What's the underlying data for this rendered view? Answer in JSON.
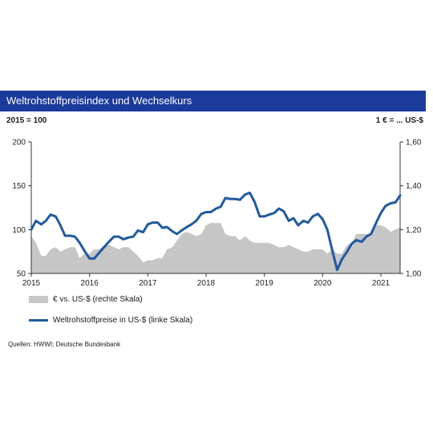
{
  "chart_data": {
    "type": "line",
    "title": "Weltrohstoffpreisindex und Wechselkurs",
    "left_axis_label": "2015 = 100",
    "right_axis_label": "1 € = ... US-$",
    "ylim": [
      50,
      200
    ],
    "y_ticks": [
      "50",
      "100",
      "150",
      "200"
    ],
    "y2lim": [
      1.0,
      1.6
    ],
    "y2_ticks": [
      "1,00",
      "1,20",
      "1,40",
      "1,60"
    ],
    "xlim": [
      2015.0,
      2021.33
    ],
    "x_ticks": [
      "2015",
      "2016",
      "2017",
      "2018",
      "2019",
      "2020",
      "2021"
    ],
    "grid": false,
    "legend_position": "bottom-left",
    "series": [
      {
        "name": "€ vs. US-$ (rechte Skala)",
        "type": "area",
        "axis": "right",
        "color": "#c6c6c6",
        "points": [
          [
            2015.0,
            1.17
          ],
          [
            2015.08,
            1.14
          ],
          [
            2015.17,
            1.08
          ],
          [
            2015.25,
            1.08
          ],
          [
            2015.33,
            1.11
          ],
          [
            2015.42,
            1.12
          ],
          [
            2015.5,
            1.1
          ],
          [
            2015.58,
            1.11
          ],
          [
            2015.67,
            1.12
          ],
          [
            2015.75,
            1.12
          ],
          [
            2015.83,
            1.07
          ],
          [
            2015.92,
            1.09
          ],
          [
            2016.0,
            1.09
          ],
          [
            2016.08,
            1.11
          ],
          [
            2016.17,
            1.11
          ],
          [
            2016.25,
            1.13
          ],
          [
            2016.33,
            1.13
          ],
          [
            2016.42,
            1.12
          ],
          [
            2016.5,
            1.11
          ],
          [
            2016.58,
            1.12
          ],
          [
            2016.67,
            1.12
          ],
          [
            2016.75,
            1.1
          ],
          [
            2016.83,
            1.08
          ],
          [
            2016.92,
            1.05
          ],
          [
            2017.0,
            1.06
          ],
          [
            2017.08,
            1.06
          ],
          [
            2017.17,
            1.07
          ],
          [
            2017.25,
            1.07
          ],
          [
            2017.33,
            1.11
          ],
          [
            2017.42,
            1.12
          ],
          [
            2017.5,
            1.15
          ],
          [
            2017.58,
            1.18
          ],
          [
            2017.67,
            1.19
          ],
          [
            2017.75,
            1.18
          ],
          [
            2017.83,
            1.17
          ],
          [
            2017.92,
            1.18
          ],
          [
            2018.0,
            1.22
          ],
          [
            2018.08,
            1.23
          ],
          [
            2018.17,
            1.23
          ],
          [
            2018.25,
            1.23
          ],
          [
            2018.33,
            1.18
          ],
          [
            2018.42,
            1.17
          ],
          [
            2018.5,
            1.17
          ],
          [
            2018.58,
            1.15
          ],
          [
            2018.67,
            1.17
          ],
          [
            2018.75,
            1.15
          ],
          [
            2018.83,
            1.14
          ],
          [
            2018.92,
            1.14
          ],
          [
            2019.0,
            1.14
          ],
          [
            2019.08,
            1.14
          ],
          [
            2019.17,
            1.13
          ],
          [
            2019.25,
            1.12
          ],
          [
            2019.33,
            1.12
          ],
          [
            2019.42,
            1.13
          ],
          [
            2019.5,
            1.12
          ],
          [
            2019.58,
            1.11
          ],
          [
            2019.67,
            1.1
          ],
          [
            2019.75,
            1.1
          ],
          [
            2019.83,
            1.11
          ],
          [
            2019.92,
            1.11
          ],
          [
            2020.0,
            1.11
          ],
          [
            2020.08,
            1.09
          ],
          [
            2020.17,
            1.11
          ],
          [
            2020.25,
            1.09
          ],
          [
            2020.33,
            1.09
          ],
          [
            2020.42,
            1.13
          ],
          [
            2020.5,
            1.14
          ],
          [
            2020.58,
            1.18
          ],
          [
            2020.67,
            1.18
          ],
          [
            2020.75,
            1.18
          ],
          [
            2020.83,
            1.18
          ],
          [
            2020.92,
            1.22
          ],
          [
            2021.0,
            1.22
          ],
          [
            2021.08,
            1.21
          ],
          [
            2021.17,
            1.19
          ],
          [
            2021.25,
            1.2
          ],
          [
            2021.33,
            1.21
          ]
        ]
      },
      {
        "name": "Weltrohstoffpreise in US-$ (linke Skala)",
        "type": "line",
        "axis": "left",
        "color": "#1f5aa0",
        "points": [
          [
            2015.0,
            100
          ],
          [
            2015.08,
            110
          ],
          [
            2015.17,
            106
          ],
          [
            2015.25,
            110
          ],
          [
            2015.33,
            117
          ],
          [
            2015.42,
            115
          ],
          [
            2015.5,
            105
          ],
          [
            2015.58,
            93
          ],
          [
            2015.67,
            93
          ],
          [
            2015.75,
            92
          ],
          [
            2015.83,
            85
          ],
          [
            2015.92,
            75
          ],
          [
            2016.0,
            67
          ],
          [
            2016.08,
            67
          ],
          [
            2016.17,
            74
          ],
          [
            2016.25,
            80
          ],
          [
            2016.33,
            86
          ],
          [
            2016.42,
            92
          ],
          [
            2016.5,
            92
          ],
          [
            2016.58,
            89
          ],
          [
            2016.67,
            91
          ],
          [
            2016.75,
            92
          ],
          [
            2016.83,
            99
          ],
          [
            2016.92,
            97
          ],
          [
            2017.0,
            106
          ],
          [
            2017.08,
            108
          ],
          [
            2017.17,
            108
          ],
          [
            2017.25,
            102
          ],
          [
            2017.33,
            103
          ],
          [
            2017.42,
            98
          ],
          [
            2017.5,
            95
          ],
          [
            2017.58,
            99
          ],
          [
            2017.67,
            103
          ],
          [
            2017.75,
            106
          ],
          [
            2017.83,
            110
          ],
          [
            2017.92,
            118
          ],
          [
            2018.0,
            120
          ],
          [
            2018.08,
            120
          ],
          [
            2018.17,
            124
          ],
          [
            2018.25,
            126
          ],
          [
            2018.33,
            136
          ],
          [
            2018.42,
            135
          ],
          [
            2018.5,
            135
          ],
          [
            2018.58,
            134
          ],
          [
            2018.67,
            140
          ],
          [
            2018.75,
            142
          ],
          [
            2018.83,
            132
          ],
          [
            2018.92,
            115
          ],
          [
            2019.0,
            115
          ],
          [
            2019.08,
            117
          ],
          [
            2019.17,
            119
          ],
          [
            2019.25,
            124
          ],
          [
            2019.33,
            121
          ],
          [
            2019.42,
            110
          ],
          [
            2019.5,
            113
          ],
          [
            2019.58,
            105
          ],
          [
            2019.67,
            110
          ],
          [
            2019.75,
            108
          ],
          [
            2019.83,
            115
          ],
          [
            2019.92,
            118
          ],
          [
            2020.0,
            112
          ],
          [
            2020.08,
            100
          ],
          [
            2020.17,
            75
          ],
          [
            2020.25,
            54
          ],
          [
            2020.33,
            66
          ],
          [
            2020.42,
            75
          ],
          [
            2020.5,
            84
          ],
          [
            2020.58,
            88
          ],
          [
            2020.67,
            86
          ],
          [
            2020.75,
            92
          ],
          [
            2020.83,
            95
          ],
          [
            2020.92,
            108
          ],
          [
            2021.0,
            119
          ],
          [
            2021.08,
            127
          ],
          [
            2021.17,
            130
          ],
          [
            2021.25,
            131
          ],
          [
            2021.33,
            139
          ]
        ]
      }
    ]
  },
  "source": "Quellen: HWWI; Deutsche Bundesbank"
}
